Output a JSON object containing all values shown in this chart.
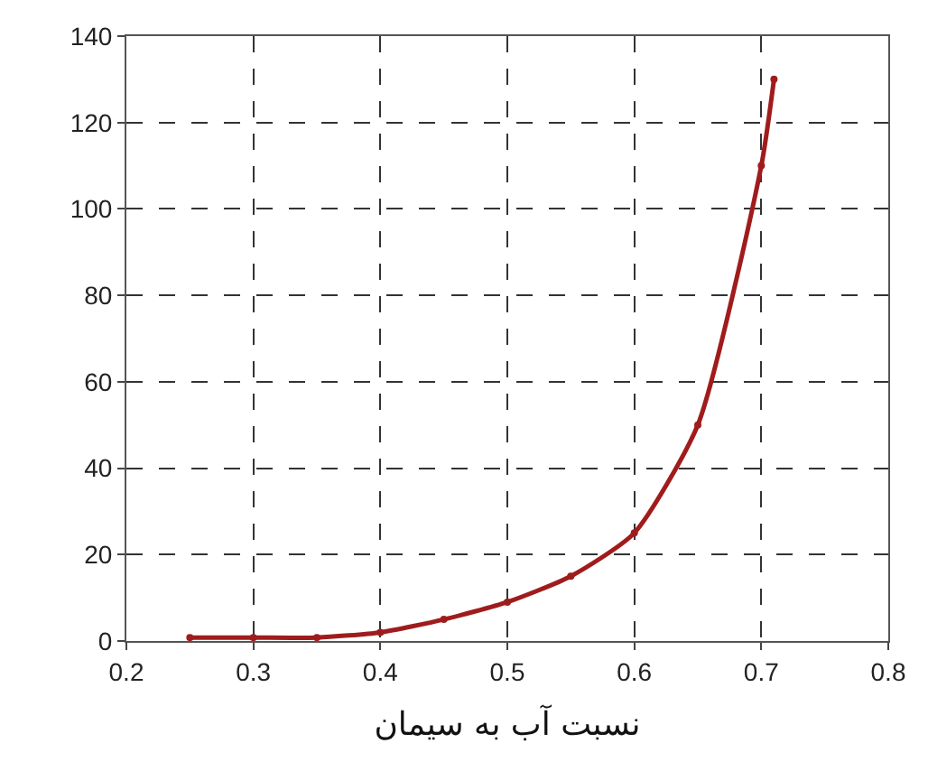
{
  "chart_data": {
    "type": "line",
    "xlabel": "نسبت آب به سیمان",
    "x": [
      0.25,
      0.3,
      0.35,
      0.4,
      0.45,
      0.5,
      0.55,
      0.6,
      0.65,
      0.7,
      0.71
    ],
    "series": [
      {
        "color": "#a01c1c",
        "values": [
          0.8,
          0.8,
          0.8,
          2,
          5,
          9,
          15,
          25,
          50,
          110,
          130
        ]
      }
    ],
    "xlim": [
      0.2,
      0.8
    ],
    "xticks": [
      0.2,
      0.3,
      0.4,
      0.5,
      0.6,
      0.7,
      0.8
    ],
    "ylim": [
      0,
      140
    ],
    "yticks": [
      0,
      20,
      40,
      60,
      80,
      100,
      120,
      140
    ],
    "grid": true,
    "legend": false,
    "marker": "circle",
    "line_style": "solid"
  }
}
